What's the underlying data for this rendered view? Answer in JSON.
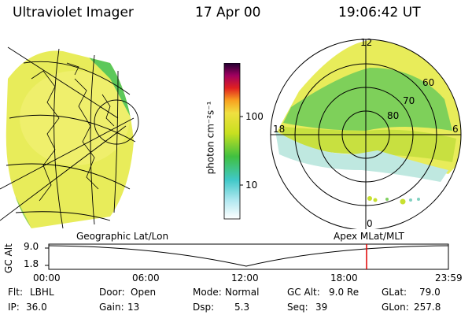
{
  "header": {
    "instrument": "Ultraviolet Imager",
    "date": "17 Apr 00",
    "time": "19:06:42 UT"
  },
  "colorbar": {
    "unit_label": "photon cm⁻²s⁻¹",
    "ticks": [
      "100",
      "10"
    ]
  },
  "polar_plot": {
    "mlt_labels": {
      "top": "12",
      "left": "18",
      "right": "6",
      "bottom": "0"
    },
    "lat_labels": [
      "60",
      "70",
      "80"
    ]
  },
  "panels": {
    "left_caption": "Geographic Lat/Lon",
    "right_caption": "Apex MLat/MLT"
  },
  "timeline": {
    "ylabel": "GC Alt",
    "y_ticks": [
      "9.0",
      "1.8"
    ],
    "x_ticks": [
      "00:00",
      "06:00",
      "12:00",
      "18:00",
      "23:59"
    ],
    "marker_color": "#e00000"
  },
  "status": {
    "flt_label": "Flt:",
    "flt_value": "LBHL",
    "ip_label": "IP:",
    "ip_value": "36.0",
    "door_label": "Door:",
    "door_value": "Open",
    "gain_label": "Gain:",
    "gain_value": "13",
    "mode_label": "Mode:",
    "mode_value": "Normal",
    "dsp_label": "Dsp:",
    "dsp_value": "5.3",
    "gcalt_label": "GC Alt:",
    "gcalt_value": "9.0 Re",
    "seq_label": "Seq:",
    "seq_value": "39",
    "glat_label": "GLat:",
    "glat_value": "79.0",
    "glon_label": "GLon:",
    "glon_value": "257.8"
  }
}
